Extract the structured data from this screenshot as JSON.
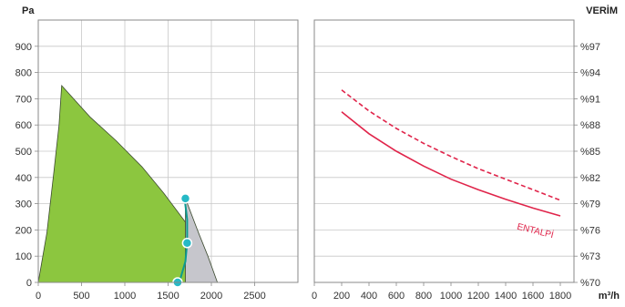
{
  "chart_data": [
    {
      "type": "area",
      "ylabel": "Pa",
      "xlim": [
        0,
        3000
      ],
      "ylim": [
        0,
        1000
      ],
      "x_ticks": [
        0,
        500,
        1000,
        1500,
        2000,
        2500
      ],
      "y_ticks": [
        0,
        100,
        200,
        300,
        400,
        500,
        600,
        700,
        800,
        900
      ],
      "grid": true,
      "series": [
        {
          "color": "#8cc63f",
          "boundary": [
            [
              0,
              0
            ],
            [
              100,
              190
            ],
            [
              180,
              420
            ],
            [
              240,
              600
            ],
            [
              270,
              750
            ],
            [
              600,
              630
            ],
            [
              900,
              540
            ],
            [
              1200,
              440
            ],
            [
              1450,
              340
            ],
            [
              1700,
              230
            ],
            [
              1715,
              0
            ]
          ]
        },
        {
          "color": "#c6c6cc",
          "boundary": [
            [
              1700,
              320
            ],
            [
              1850,
              190
            ],
            [
              1960,
              100
            ],
            [
              2070,
              0
            ],
            [
              1700,
              0
            ]
          ]
        }
      ],
      "line": {
        "color": "#0c9a90",
        "points": [
          [
            1690,
            320
          ],
          [
            1720,
            240
          ],
          [
            1720,
            150
          ],
          [
            1700,
            80
          ],
          [
            1630,
            0
          ]
        ]
      },
      "markers": {
        "color": "#26b9c6",
        "points": [
          [
            1700,
            320
          ],
          [
            1720,
            150
          ],
          [
            1610,
            0
          ]
        ]
      }
    },
    {
      "type": "line",
      "xlabel": "m³/h",
      "ylabel": "VERİM",
      "xlim": [
        0,
        1900
      ],
      "ylim": [
        70,
        100
      ],
      "x_ticks": [
        0,
        200,
        400,
        600,
        800,
        1000,
        1200,
        1400,
        1600,
        1800
      ],
      "y_ticks": [
        70,
        73,
        76,
        79,
        82,
        85,
        88,
        91,
        94,
        97
      ],
      "y_tick_labels": [
        "%70",
        "%73",
        "%76",
        "%79",
        "%82",
        "%85",
        "%88",
        "%91",
        "%94",
        "%97"
      ],
      "grid": true,
      "series": [
        {
          "name": "ENTALPİ",
          "color": "#e0244a",
          "dash": false,
          "x": [
            200,
            400,
            600,
            800,
            1000,
            1200,
            1400,
            1600,
            1800
          ],
          "y": [
            89.5,
            87.0,
            85.0,
            83.3,
            81.8,
            80.6,
            79.5,
            78.5,
            77.6
          ]
        },
        {
          "color": "#e0244a",
          "dash": true,
          "x": [
            200,
            400,
            600,
            800,
            1000,
            1200,
            1400,
            1600,
            1800
          ],
          "y": [
            92.0,
            89.6,
            87.6,
            85.9,
            84.4,
            83.0,
            81.8,
            80.6,
            79.4
          ]
        }
      ]
    }
  ]
}
